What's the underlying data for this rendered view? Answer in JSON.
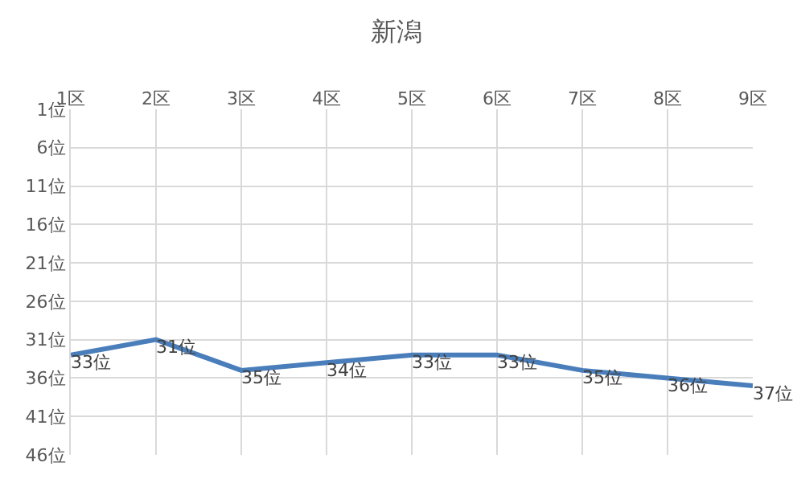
{
  "chart_data": {
    "type": "line",
    "title": "新潟",
    "categories": [
      "1区",
      "2区",
      "3区",
      "4区",
      "5区",
      "6区",
      "7区",
      "8区",
      "9区"
    ],
    "series": [
      {
        "color": "#4a7ebb",
        "values": [
          33,
          31,
          35,
          34,
          33,
          33,
          35,
          36,
          37
        ],
        "value_labels": [
          "33位",
          "31位",
          "35位",
          "34位",
          "33位",
          "33位",
          "35位",
          "36位",
          "37位"
        ]
      }
    ],
    "ylim": [
      46,
      1
    ],
    "yticks": [
      {
        "value": 1,
        "label": "1位"
      },
      {
        "value": 6,
        "label": "6位"
      },
      {
        "value": 11,
        "label": "11位"
      },
      {
        "value": 16,
        "label": "16位"
      },
      {
        "value": 21,
        "label": "21位"
      },
      {
        "value": 26,
        "label": "26位"
      },
      {
        "value": 31,
        "label": "31位"
      },
      {
        "value": 36,
        "label": "36位"
      },
      {
        "value": 41,
        "label": "41位"
      },
      {
        "value": 46,
        "label": "46位"
      }
    ],
    "grid": true,
    "marker": "none",
    "line_style": "solid",
    "legend": false
  }
}
